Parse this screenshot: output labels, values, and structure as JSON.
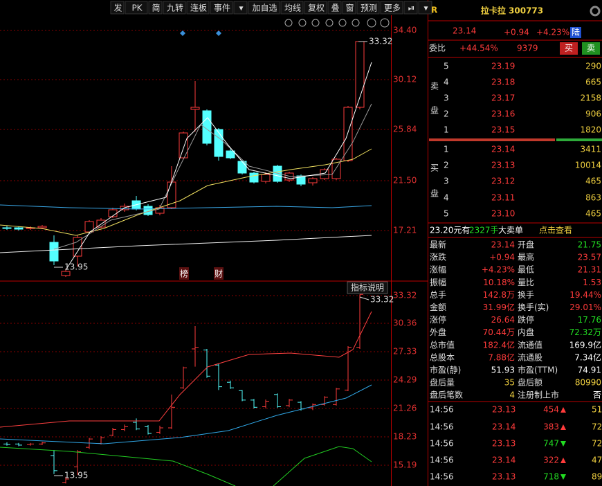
{
  "toolbar": [
    "发",
    "PK",
    "简",
    "九转",
    "连板",
    "事件",
    "▾",
    "加自选",
    "均线",
    "复权",
    "叠",
    "窗",
    "预测",
    "更多",
    "⏯",
    "▾"
  ],
  "chart": {
    "price_axis": [
      "34.40",
      "30.12",
      "25.84",
      "21.50",
      "17.21"
    ],
    "indicator_axis": [
      "33.32",
      "30.36",
      "27.33",
      "24.29",
      "21.26",
      "18.23",
      "15.19"
    ],
    "price_high_label": "33.32",
    "price_low_label": "13.95",
    "indicator_high_label": "33.32",
    "indicator_low_label": "13.95",
    "markers": [
      "榜",
      "财"
    ],
    "indicator_button": "指标说明"
  },
  "quote": {
    "tag": "R",
    "name": "拉卡拉 300773",
    "price": "23.14",
    "change": "+0.94",
    "pct": "+4.23%",
    "badge": "陆"
  },
  "weibi": {
    "label": "委比",
    "pct": "+44.54%",
    "diff": "9379",
    "buy": "买",
    "sell": "卖"
  },
  "sell": {
    "label": [
      "卖",
      "盘"
    ],
    "rows": [
      [
        "5",
        "23.19",
        "290"
      ],
      [
        "4",
        "23.18",
        "665"
      ],
      [
        "3",
        "23.17",
        "2158"
      ],
      [
        "2",
        "23.16",
        "906"
      ],
      [
        "1",
        "23.15",
        "1820"
      ]
    ]
  },
  "buy": {
    "label": [
      "买",
      "盘"
    ],
    "rows": [
      [
        "1",
        "23.14",
        "3411"
      ],
      [
        "2",
        "23.13",
        "10014"
      ],
      [
        "3",
        "23.12",
        "465"
      ],
      [
        "4",
        "23.11",
        "863"
      ],
      [
        "5",
        "23.10",
        "465"
      ]
    ]
  },
  "big_order": [
    "23.20元有",
    "2327手",
    "大卖单",
    "点击查看"
  ],
  "stats": [
    [
      "最新",
      "23.14",
      "开盘",
      "21.75"
    ],
    [
      "涨跌",
      "+0.94",
      "最高",
      "23.57"
    ],
    [
      "涨幅",
      "+4.23%",
      "最低",
      "21.31"
    ],
    [
      "振幅",
      "10.18%",
      "量比",
      "1.53"
    ],
    [
      "总手",
      "142.8万",
      "换手",
      "19.44%"
    ],
    [
      "金额",
      "31.99亿",
      "换手(实)",
      "29.01%"
    ],
    [
      "涨停",
      "26.64",
      "跌停",
      "17.76"
    ],
    [
      "外盘",
      "70.44万",
      "内盘",
      "72.32万"
    ],
    [
      "总市值",
      "182.4亿",
      "流通值",
      "169.9亿"
    ],
    [
      "总股本",
      "7.88亿",
      "流通股",
      "7.34亿"
    ],
    [
      "市盈(静)",
      "51.93",
      "市盈(TTM)",
      "74.91"
    ],
    [
      "盘后量",
      "35",
      "盘后额",
      "80990"
    ],
    [
      "盘后笔数",
      "4",
      "注册制上市",
      "否"
    ]
  ],
  "trades": [
    [
      "14:56",
      "23.13",
      "454",
      "51"
    ],
    [
      "14:56",
      "23.14",
      "383",
      "72"
    ],
    [
      "14:56",
      "23.13",
      "747",
      "72"
    ],
    [
      "14:56",
      "23.14",
      "322",
      "47"
    ],
    [
      "14:56",
      "23.13",
      "718",
      "89"
    ]
  ]
}
